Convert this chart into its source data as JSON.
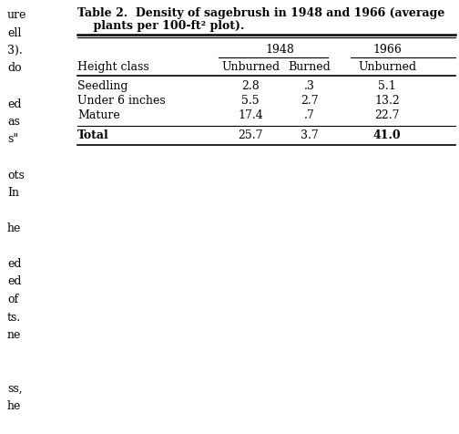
{
  "title_line1": "Table 2.  Density of sagebrush in 1948 and 1966 (average",
  "title_line2": "    plants per 100-ft² plot).",
  "col_groups": [
    "1948",
    "1966"
  ],
  "row_header": "Height class",
  "subheaders": [
    "Unburned",
    "Burned",
    "Unburned"
  ],
  "rows": [
    [
      "Seedling",
      "2.8",
      ".3",
      "5.1"
    ],
    [
      "Under 6 inches",
      "5.5",
      "2.7",
      "13.2"
    ],
    [
      "Mature",
      "17.4",
      ".7",
      "22.7"
    ]
  ],
  "total_row": [
    "Total",
    "25.7",
    "3.7",
    "41.0"
  ],
  "bg_color": "#ffffff",
  "title_fontsize": 9.0,
  "body_fontsize": 9.0,
  "left_margin_text": [
    "ure",
    "ell",
    "3).",
    "do",
    "",
    "ed",
    "as",
    "s\"",
    "",
    "ots",
    "In",
    "",
    "he",
    "",
    "ed",
    "ed",
    "of",
    "ts.",
    "ne",
    "",
    "",
    "ss,",
    "he"
  ]
}
